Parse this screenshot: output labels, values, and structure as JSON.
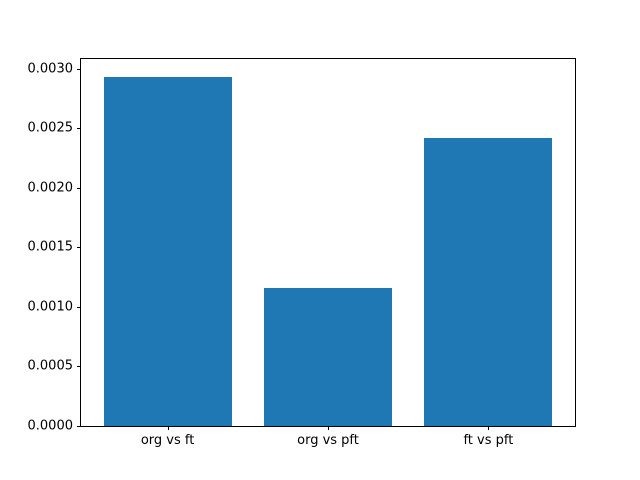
{
  "chart_data": {
    "type": "bar",
    "categories": [
      "org vs ft",
      "org vs pft",
      "ft vs pft"
    ],
    "values": [
      0.00293,
      0.00116,
      0.00242
    ],
    "title": "",
    "xlabel": "",
    "ylabel": "",
    "ylim": [
      0,
      0.00308
    ],
    "xlim": [
      -0.54,
      2.54
    ],
    "yticks": [
      0.0,
      0.0005,
      0.001,
      0.0015,
      0.002,
      0.0025,
      0.003
    ],
    "ytick_labels": [
      "0.0000",
      "0.0005",
      "0.0010",
      "0.0015",
      "0.0020",
      "0.0025",
      "0.0030"
    ],
    "bar_color": "#1f77b4",
    "bar_width_fraction": 0.8,
    "grid": false,
    "legend": null
  }
}
